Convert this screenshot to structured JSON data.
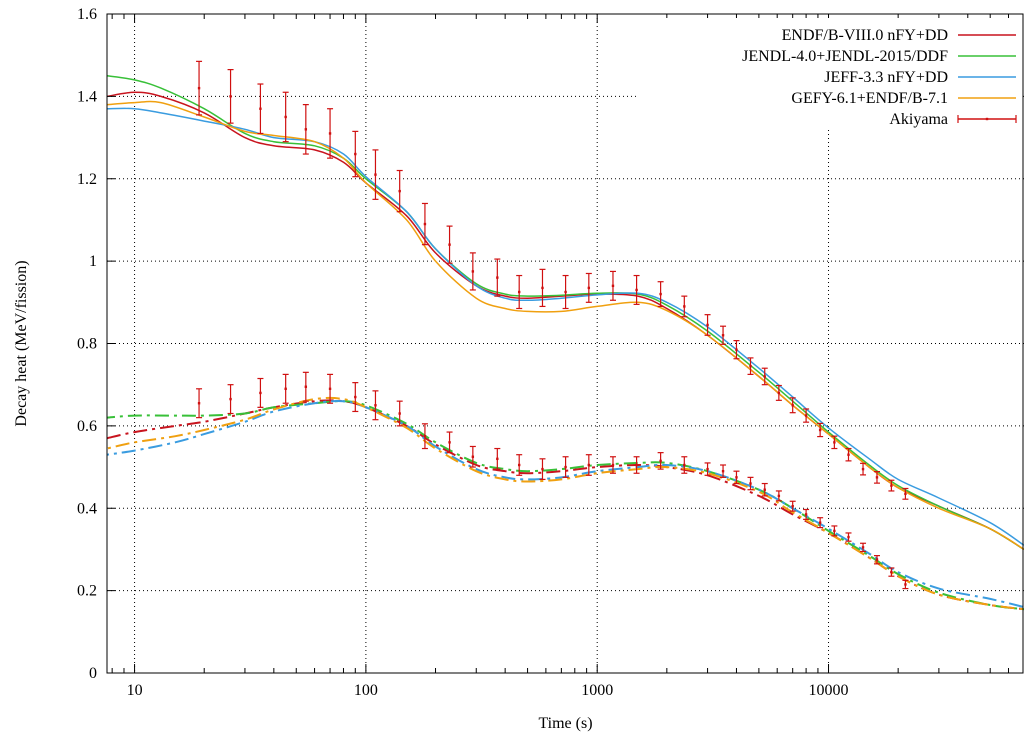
{
  "chart_data": {
    "type": "line",
    "xlabel": "Time (s)",
    "ylabel": "Decay heat (MeV/fission)",
    "xscale": "log",
    "xlim": [
      7.6,
      70000
    ],
    "ylim": [
      0,
      1.6
    ],
    "xticks": [
      10,
      100,
      1000,
      10000
    ],
    "xtick_labels": [
      "10",
      "100",
      "1000",
      "10000"
    ],
    "yticks": [
      0,
      0.2,
      0.4,
      0.6,
      0.8,
      1,
      1.2,
      1.4,
      1.6
    ],
    "ytick_labels": [
      "0",
      "0.2",
      "0.4",
      "0.6",
      "0.8",
      "1",
      "1.2",
      "1.4",
      "1.6"
    ],
    "grid": true,
    "legend_position": "top-right",
    "legend": [
      {
        "label": "ENDF/B-VIII.0 nFY+DD",
        "color": "#c8141e"
      },
      {
        "label": "JENDL-4.0+JENDL-2015/DDF",
        "color": "#38c038"
      },
      {
        "label": "JEFF-3.3 nFY+DD",
        "color": "#3a9ce0"
      },
      {
        "label": "GEFY-6.1+ENDF/B-7.1",
        "color": "#f0a010"
      },
      {
        "label": "Akiyama",
        "color": "#d01010"
      }
    ],
    "series": [
      {
        "name": "ENDF/B-VIII.0 nFY+DD",
        "group": "total",
        "style": "solid",
        "color": "#c8141e",
        "x": [
          7.6,
          10,
          13,
          20,
          30,
          40,
          60,
          80,
          100,
          150,
          200,
          300,
          400,
          500,
          700,
          1000,
          1500,
          2000,
          3000,
          5000,
          7000,
          10000,
          15000,
          20000,
          30000,
          50000,
          70000
        ],
        "y": [
          1.4,
          1.41,
          1.4,
          1.36,
          1.3,
          1.28,
          1.27,
          1.24,
          1.19,
          1.11,
          1.02,
          0.94,
          0.915,
          0.91,
          0.915,
          0.92,
          0.915,
          0.885,
          0.82,
          0.72,
          0.65,
          0.58,
          0.5,
          0.45,
          0.405,
          0.35,
          0.3
        ]
      },
      {
        "name": "JENDL-4.0+JENDL-2015/DDF",
        "group": "total",
        "style": "solid",
        "color": "#38c038",
        "x": [
          7.6,
          10,
          13,
          20,
          30,
          40,
          60,
          80,
          100,
          150,
          200,
          300,
          400,
          500,
          700,
          1000,
          1500,
          2000,
          3000,
          5000,
          7000,
          10000,
          15000,
          20000,
          30000,
          50000,
          70000
        ],
        "y": [
          1.45,
          1.44,
          1.42,
          1.37,
          1.31,
          1.29,
          1.28,
          1.25,
          1.2,
          1.12,
          1.03,
          0.945,
          0.92,
          0.915,
          0.917,
          0.922,
          0.92,
          0.893,
          0.83,
          0.73,
          0.66,
          0.585,
          0.505,
          0.455,
          0.405,
          0.35,
          0.3
        ]
      },
      {
        "name": "JEFF-3.3 nFY+DD",
        "group": "total",
        "style": "solid",
        "color": "#3a9ce0",
        "x": [
          7.6,
          10,
          13,
          20,
          30,
          40,
          60,
          80,
          100,
          150,
          200,
          300,
          400,
          500,
          700,
          1000,
          1500,
          2000,
          3000,
          5000,
          7000,
          10000,
          15000,
          20000,
          30000,
          50000,
          70000
        ],
        "y": [
          1.37,
          1.37,
          1.36,
          1.34,
          1.32,
          1.3,
          1.29,
          1.26,
          1.205,
          1.12,
          1.03,
          0.94,
          0.91,
          0.905,
          0.91,
          0.918,
          0.922,
          0.9,
          0.84,
          0.74,
          0.67,
          0.595,
          0.52,
          0.47,
          0.425,
          0.365,
          0.31
        ]
      },
      {
        "name": "GEFY-6.1+ENDF/B-7.1",
        "group": "total",
        "style": "solid",
        "color": "#f0a010",
        "x": [
          7.6,
          10,
          13,
          20,
          30,
          40,
          60,
          80,
          100,
          150,
          200,
          300,
          400,
          500,
          700,
          1000,
          1500,
          2000,
          3000,
          5000,
          7000,
          10000,
          15000,
          20000,
          30000,
          50000,
          70000
        ],
        "y": [
          1.38,
          1.385,
          1.385,
          1.35,
          1.315,
          1.305,
          1.29,
          1.25,
          1.19,
          1.1,
          1.0,
          0.91,
          0.885,
          0.878,
          0.878,
          0.89,
          0.9,
          0.88,
          0.82,
          0.72,
          0.65,
          0.58,
          0.5,
          0.45,
          0.4,
          0.35,
          0.3
        ]
      },
      {
        "name": "ENDF/B-VIII.0 nFY+DD",
        "group": "gamma",
        "style": "dashdot",
        "color": "#c8141e",
        "x": [
          7.6,
          10,
          15,
          20,
          30,
          40,
          60,
          80,
          100,
          150,
          200,
          300,
          400,
          500,
          700,
          1000,
          1500,
          2000,
          3000,
          5000,
          7000,
          10000,
          15000,
          20000,
          30000,
          50000,
          70000
        ],
        "y": [
          0.57,
          0.585,
          0.6,
          0.61,
          0.63,
          0.645,
          0.66,
          0.66,
          0.645,
          0.6,
          0.555,
          0.505,
          0.49,
          0.485,
          0.49,
          0.5,
          0.505,
          0.5,
          0.48,
          0.43,
          0.385,
          0.34,
          0.28,
          0.235,
          0.19,
          0.165,
          0.155
        ]
      },
      {
        "name": "JENDL-4.0+JENDL-2015/DDF",
        "group": "gamma",
        "style": "dashdot",
        "color": "#38c038",
        "x": [
          7.6,
          10,
          15,
          20,
          30,
          40,
          60,
          80,
          100,
          150,
          200,
          300,
          400,
          500,
          700,
          1000,
          1500,
          2000,
          3000,
          5000,
          7000,
          10000,
          15000,
          20000,
          30000,
          50000,
          70000
        ],
        "y": [
          0.62,
          0.625,
          0.625,
          0.625,
          0.63,
          0.645,
          0.655,
          0.66,
          0.65,
          0.605,
          0.56,
          0.51,
          0.495,
          0.49,
          0.495,
          0.505,
          0.51,
          0.51,
          0.49,
          0.445,
          0.4,
          0.345,
          0.285,
          0.24,
          0.195,
          0.165,
          0.155
        ]
      },
      {
        "name": "JEFF-3.3 nFY+DD",
        "group": "gamma",
        "style": "dashdot",
        "color": "#3a9ce0",
        "x": [
          7.6,
          10,
          15,
          20,
          30,
          40,
          60,
          80,
          100,
          150,
          200,
          300,
          400,
          500,
          700,
          1000,
          1500,
          2000,
          3000,
          5000,
          7000,
          10000,
          15000,
          20000,
          30000,
          50000,
          70000
        ],
        "y": [
          0.53,
          0.54,
          0.56,
          0.58,
          0.61,
          0.635,
          0.655,
          0.66,
          0.645,
          0.6,
          0.55,
          0.495,
          0.475,
          0.47,
          0.475,
          0.49,
          0.5,
          0.505,
          0.49,
          0.445,
          0.4,
          0.35,
          0.29,
          0.245,
          0.205,
          0.18,
          0.16
        ]
      },
      {
        "name": "GEFY-6.1+ENDF/B-7.1",
        "group": "gamma",
        "style": "dashdot",
        "color": "#f0a010",
        "x": [
          7.6,
          10,
          15,
          20,
          30,
          40,
          60,
          80,
          100,
          150,
          200,
          300,
          400,
          500,
          700,
          1000,
          1500,
          2000,
          3000,
          5000,
          7000,
          10000,
          15000,
          20000,
          30000,
          50000,
          70000
        ],
        "y": [
          0.545,
          0.56,
          0.575,
          0.59,
          0.615,
          0.64,
          0.665,
          0.665,
          0.645,
          0.595,
          0.545,
          0.49,
          0.47,
          0.465,
          0.47,
          0.485,
          0.495,
          0.5,
          0.485,
          0.44,
          0.39,
          0.34,
          0.28,
          0.235,
          0.19,
          0.165,
          0.155
        ]
      },
      {
        "name": "Akiyama",
        "group": "total",
        "style": "errorbar",
        "color": "#d01010",
        "x": [
          19,
          26,
          35,
          45,
          55,
          70,
          90,
          110,
          140,
          180,
          230,
          290,
          370,
          460,
          580,
          730,
          920,
          1170,
          1480,
          1880,
          2380,
          3000,
          3500,
          4000,
          4600,
          5300,
          6100,
          7000,
          8000,
          9200,
          10600,
          12200,
          14100,
          16200,
          18700,
          21500
        ],
        "y": [
          1.42,
          1.4,
          1.37,
          1.35,
          1.32,
          1.31,
          1.26,
          1.21,
          1.17,
          1.09,
          1.04,
          0.975,
          0.96,
          0.925,
          0.935,
          0.925,
          0.935,
          0.94,
          0.93,
          0.92,
          0.89,
          0.845,
          0.82,
          0.785,
          0.745,
          0.72,
          0.68,
          0.65,
          0.625,
          0.59,
          0.56,
          0.53,
          0.495,
          0.475,
          0.455,
          0.435
        ],
        "err": [
          0.065,
          0.065,
          0.06,
          0.06,
          0.06,
          0.06,
          0.055,
          0.06,
          0.05,
          0.05,
          0.045,
          0.045,
          0.045,
          0.04,
          0.045,
          0.04,
          0.035,
          0.035,
          0.035,
          0.03,
          0.025,
          0.025,
          0.022,
          0.022,
          0.02,
          0.02,
          0.018,
          0.018,
          0.016,
          0.016,
          0.015,
          0.015,
          0.014,
          0.014,
          0.013,
          0.013
        ]
      },
      {
        "name": "Akiyama",
        "group": "gamma",
        "style": "errorbar",
        "color": "#d01010",
        "x": [
          19,
          26,
          35,
          45,
          55,
          70,
          90,
          110,
          140,
          180,
          230,
          290,
          370,
          460,
          580,
          730,
          920,
          1170,
          1480,
          1880,
          2380,
          3000,
          3500,
          4000,
          4600,
          5300,
          6100,
          7000,
          8000,
          9200,
          10600,
          12200,
          14100,
          16200,
          18700,
          21500
        ],
        "y": [
          0.655,
          0.665,
          0.68,
          0.69,
          0.695,
          0.69,
          0.67,
          0.65,
          0.63,
          0.575,
          0.56,
          0.525,
          0.52,
          0.505,
          0.495,
          0.5,
          0.505,
          0.505,
          0.505,
          0.515,
          0.505,
          0.495,
          0.49,
          0.475,
          0.46,
          0.445,
          0.43,
          0.405,
          0.385,
          0.365,
          0.345,
          0.33,
          0.305,
          0.275,
          0.245,
          0.215
        ],
        "err": [
          0.035,
          0.035,
          0.035,
          0.035,
          0.035,
          0.035,
          0.035,
          0.035,
          0.03,
          0.03,
          0.025,
          0.025,
          0.025,
          0.025,
          0.025,
          0.025,
          0.025,
          0.02,
          0.02,
          0.02,
          0.02,
          0.015,
          0.015,
          0.015,
          0.015,
          0.015,
          0.012,
          0.012,
          0.012,
          0.012,
          0.012,
          0.01,
          0.01,
          0.01,
          0.01,
          0.01
        ]
      }
    ]
  }
}
